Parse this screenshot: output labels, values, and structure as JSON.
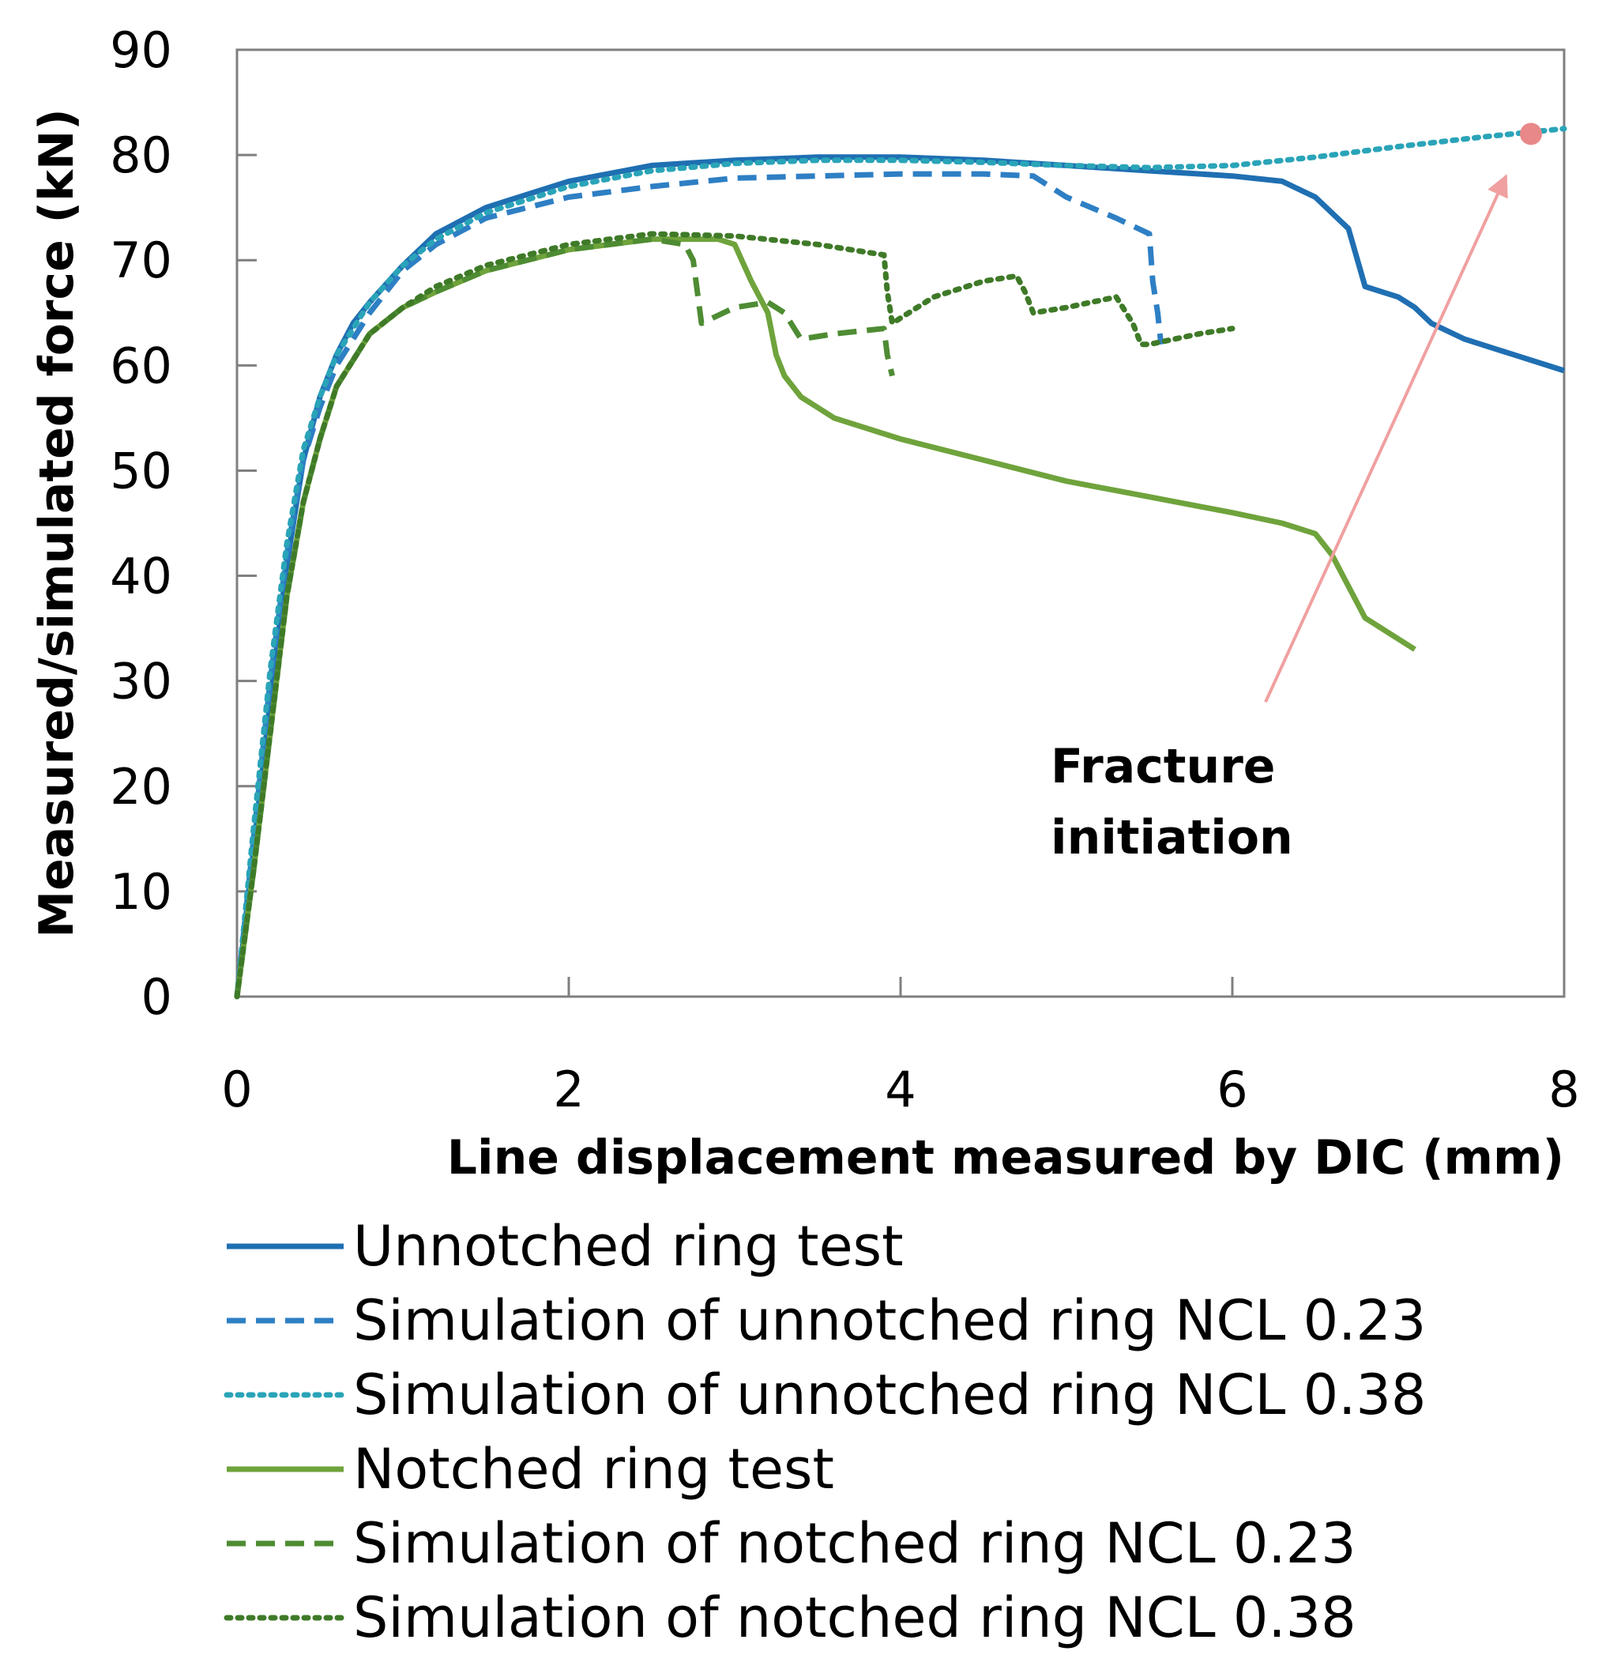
{
  "chart_data": {
    "type": "line",
    "title": "",
    "xlabel": "Line displacement  measured  by DIC (mm)",
    "ylabel": "Measured/simulated  force  (kN)",
    "xlim": [
      0,
      8
    ],
    "ylim": [
      0,
      90
    ],
    "x_ticks": [
      0,
      2,
      4,
      6,
      8
    ],
    "y_ticks": [
      0,
      10,
      20,
      30,
      40,
      50,
      60,
      70,
      80,
      90
    ],
    "grid": false,
    "legend_position": "bottom",
    "series": [
      {
        "name": "Unnotched ring test",
        "color": "#1f6fb2",
        "style": "solid",
        "x": [
          0,
          0.1,
          0.2,
          0.3,
          0.4,
          0.5,
          0.6,
          0.7,
          0.8,
          1.0,
          1.2,
          1.5,
          2.0,
          2.5,
          3.0,
          3.5,
          4.0,
          4.5,
          5.0,
          5.5,
          6.0,
          6.3,
          6.5,
          6.7,
          6.8,
          6.9,
          7.0,
          7.1,
          7.2,
          7.4,
          7.6,
          7.8,
          8.0
        ],
        "y": [
          0,
          14,
          28,
          41,
          51,
          57,
          61,
          64,
          66,
          69.5,
          72.5,
          75,
          77.5,
          79,
          79.5,
          79.8,
          79.8,
          79.5,
          79,
          78.5,
          78,
          77.5,
          76,
          73,
          67.5,
          67,
          66.5,
          65.5,
          64,
          62.5,
          61.5,
          60.5,
          59.5
        ]
      },
      {
        "name": "Simulation of unnotched ring NCL 0.23",
        "color": "#2e7fc4",
        "style": "dashed",
        "x": [
          0,
          0.1,
          0.2,
          0.3,
          0.4,
          0.5,
          0.6,
          0.8,
          1.0,
          1.2,
          1.5,
          2.0,
          2.5,
          3.0,
          3.5,
          4.0,
          4.5,
          4.8,
          5.0,
          5.3,
          5.5,
          5.52,
          5.55,
          5.57
        ],
        "y": [
          0,
          15,
          30,
          42,
          51,
          56,
          60,
          65,
          69,
          71.5,
          74,
          76,
          77,
          77.8,
          78,
          78.2,
          78.2,
          78,
          76,
          74,
          72.5,
          68,
          65,
          62
        ]
      },
      {
        "name": "Simulation of unnotched ring NCL 0.38",
        "color": "#2aa4b8",
        "style": "dotted",
        "x": [
          0,
          0.1,
          0.2,
          0.3,
          0.4,
          0.5,
          0.6,
          0.8,
          1.0,
          1.2,
          1.5,
          2.0,
          2.5,
          3.0,
          3.5,
          4.0,
          4.5,
          5.0,
          5.5,
          6.0,
          6.5,
          7.0,
          7.5,
          8.0
        ],
        "y": [
          0,
          16,
          31,
          43,
          52,
          57,
          61,
          66,
          69.5,
          72,
          74.5,
          77,
          78.5,
          79.2,
          79.5,
          79.5,
          79.3,
          79,
          78.8,
          79,
          79.8,
          80.8,
          81.7,
          82.5
        ]
      },
      {
        "name": "Notched ring test",
        "color": "#6fa33c",
        "style": "solid",
        "x": [
          0,
          0.1,
          0.2,
          0.3,
          0.4,
          0.5,
          0.6,
          0.8,
          1.0,
          1.2,
          1.5,
          2.0,
          2.5,
          2.9,
          3.0,
          3.1,
          3.2,
          3.25,
          3.3,
          3.4,
          3.5,
          3.6,
          4.0,
          4.5,
          5.0,
          5.5,
          6.0,
          6.3,
          6.5,
          6.6,
          6.7,
          6.8,
          7.0,
          7.1
        ],
        "y": [
          0,
          12,
          25,
          38,
          47,
          53,
          58,
          63,
          65.5,
          67,
          69,
          71,
          72,
          72,
          71.5,
          68,
          65,
          61,
          59,
          57,
          56,
          55,
          53,
          51,
          49,
          47.5,
          46,
          45,
          44,
          42,
          39,
          36,
          34,
          33
        ]
      },
      {
        "name": "Simulation of notched ring NCL 0.23",
        "color": "#4e8c33",
        "style": "dashed",
        "x": [
          0,
          0.1,
          0.2,
          0.3,
          0.4,
          0.5,
          0.6,
          0.8,
          1.0,
          1.2,
          1.5,
          2.0,
          2.5,
          2.7,
          2.75,
          2.8,
          3.0,
          3.2,
          3.3,
          3.4,
          3.6,
          3.9,
          3.92,
          3.95
        ],
        "y": [
          0,
          12,
          25,
          38,
          47,
          53,
          58,
          63,
          65.5,
          67,
          69,
          71,
          72,
          71.5,
          70,
          64,
          65.5,
          66,
          65,
          62.5,
          63,
          63.5,
          61,
          59
        ]
      },
      {
        "name": "Simulation of notched ring NCL 0.38",
        "color": "#3f7a28",
        "style": "dotted",
        "x": [
          0,
          0.1,
          0.2,
          0.3,
          0.4,
          0.5,
          0.6,
          0.8,
          1.0,
          1.2,
          1.5,
          2.0,
          2.5,
          3.0,
          3.5,
          3.9,
          3.92,
          3.95,
          4.0,
          4.2,
          4.5,
          4.7,
          4.75,
          4.8,
          5.0,
          5.3,
          5.4,
          5.45,
          5.5,
          5.8,
          6.0
        ],
        "y": [
          0,
          12,
          25,
          38,
          47,
          53,
          58,
          63,
          65.5,
          67.5,
          69.5,
          71.5,
          72.5,
          72.3,
          71.5,
          70.5,
          67,
          64,
          64.5,
          66.5,
          68,
          68.5,
          67,
          65,
          65.5,
          66.5,
          64,
          62,
          62,
          63,
          63.5
        ]
      }
    ],
    "annotations": [
      {
        "text_lines": [
          "Fracture",
          "initiation"
        ],
        "color": "#f0a0a0",
        "arrow_from": [
          6.2,
          28
        ],
        "arrow_to": [
          7.65,
          78
        ],
        "marker": {
          "x": 7.8,
          "y": 82,
          "color": "#e88888"
        }
      }
    ]
  }
}
